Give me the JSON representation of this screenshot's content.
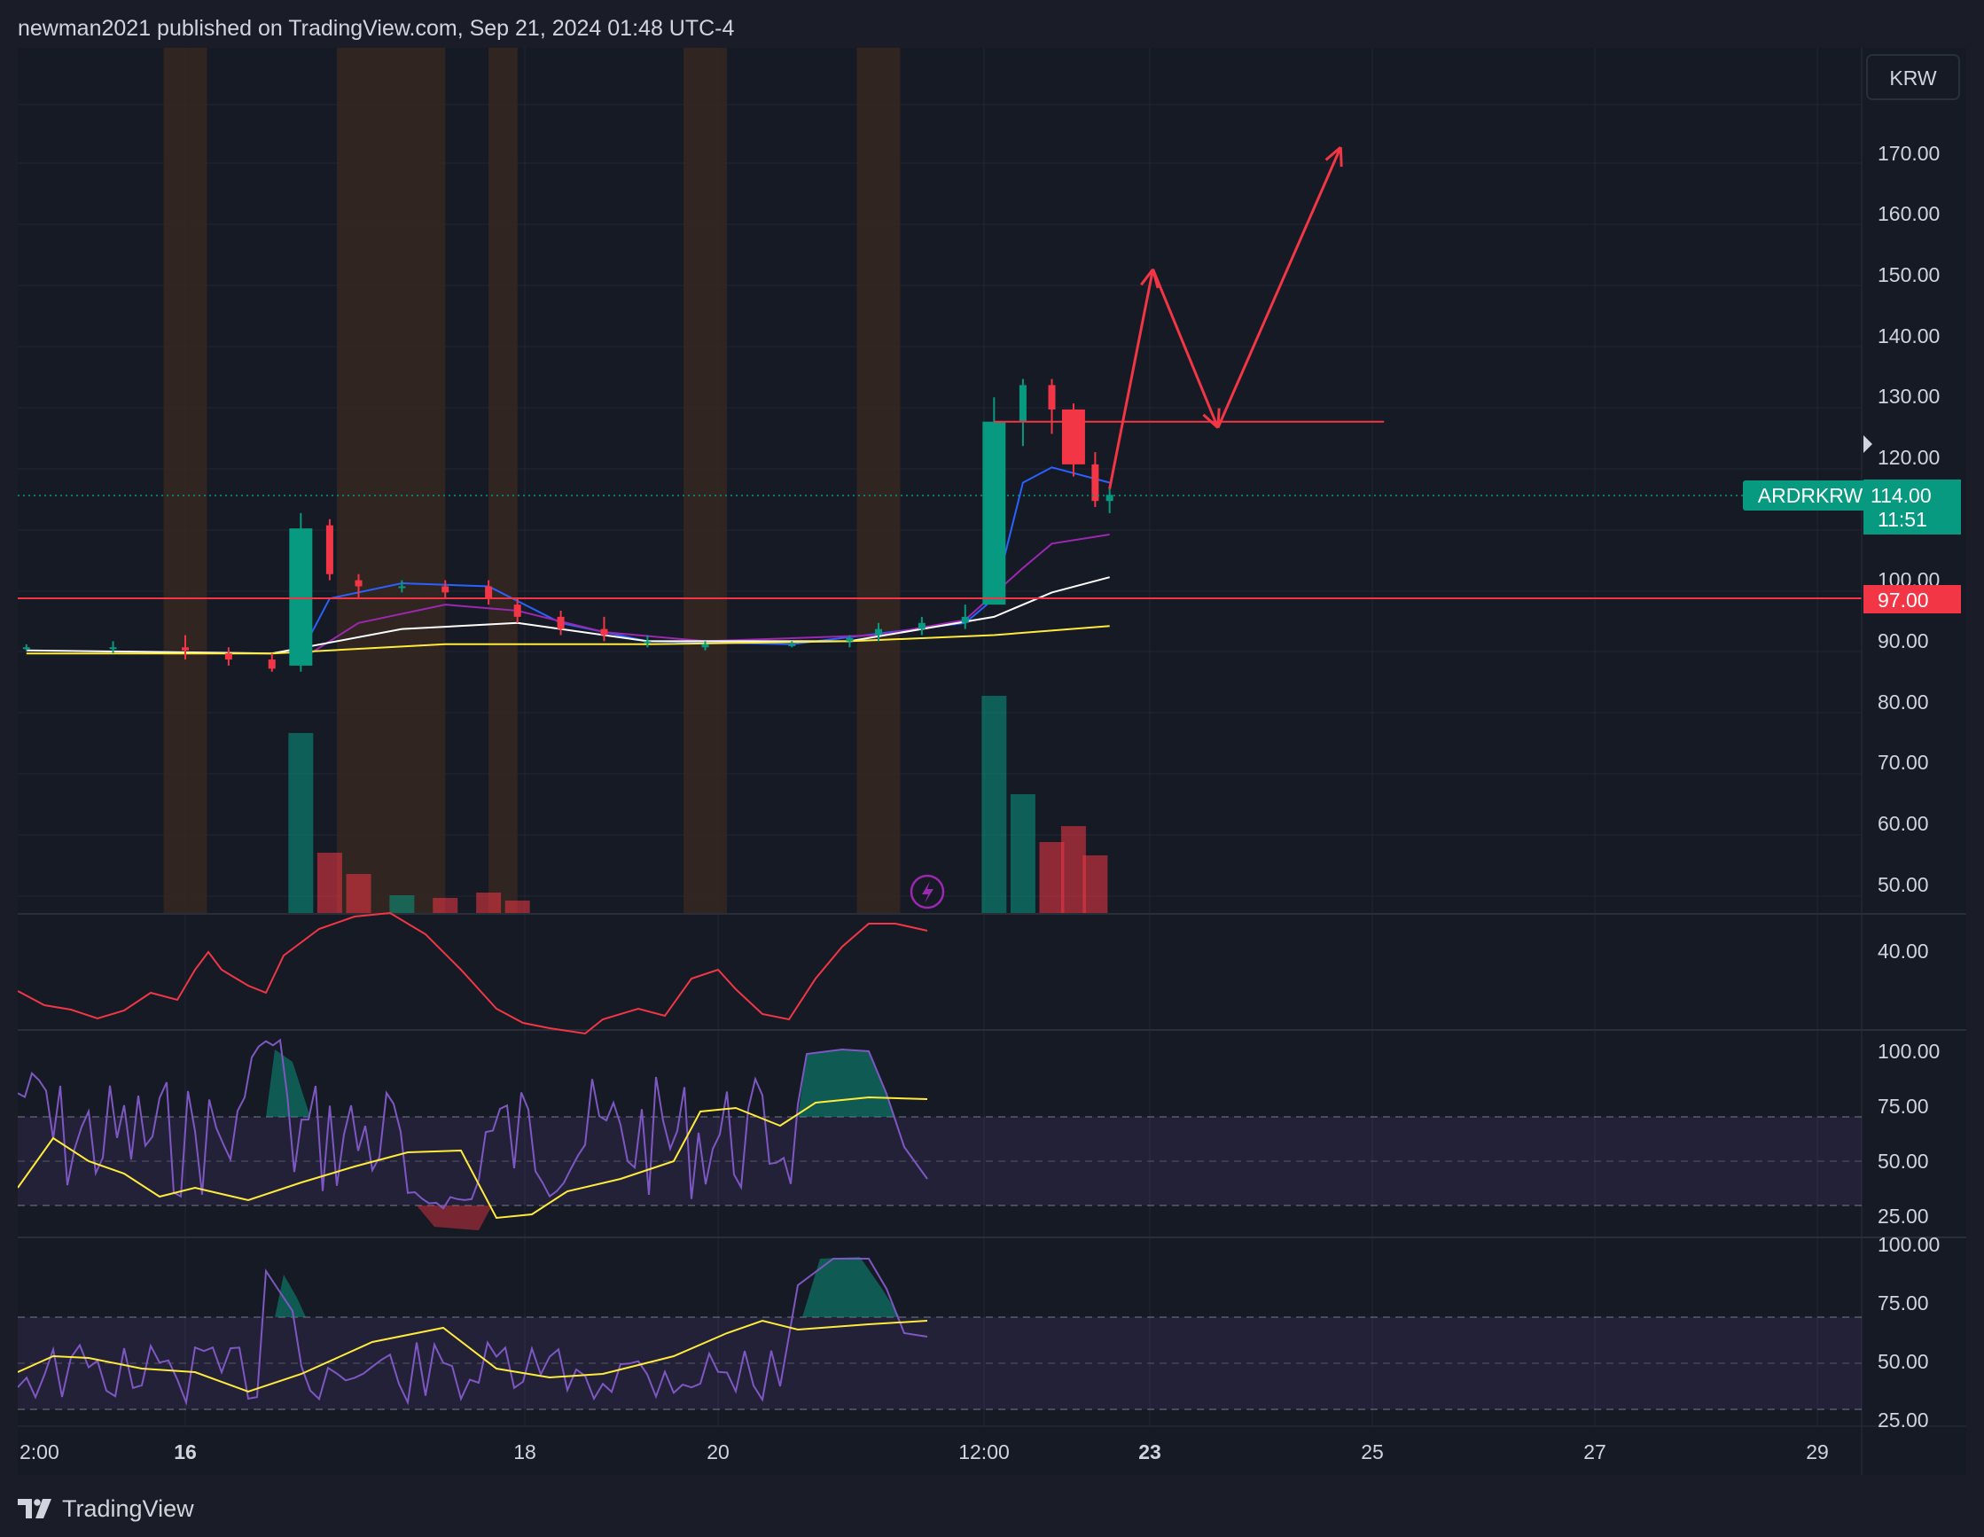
{
  "header": {
    "text": "newman2021 published on TradingView.com, Sep 21, 2024 01:48 UTC-4"
  },
  "currency_button": "KRW",
  "footer": {
    "logo_text": "TradingView"
  },
  "colors": {
    "up": "#089981",
    "down": "#f23645",
    "ma_fast": "#2962ff",
    "ma_mid": "#9c27b0",
    "ma_slow": "#ffffff",
    "ma_long": "#ffeb3b",
    "rsi": "#7e57c2",
    "rsi_ma": "#ffeb3b",
    "session": "#3a2a1f",
    "drawing": "#f23645"
  },
  "price_panel": {
    "symbol_label": "ARDRKRW",
    "last_price": "114.00",
    "countdown": "11:51",
    "level_label": "97.00",
    "y_ticks": [
      "170.00",
      "160.00",
      "150.00",
      "140.00",
      "130.00",
      "120.00",
      "100.00",
      "90.00",
      "80.00",
      "70.00",
      "60.00",
      "50.00"
    ]
  },
  "panel2": {
    "y_ticks": [
      "40.00"
    ]
  },
  "panel3": {
    "y_ticks": [
      "100.00",
      "75.00",
      "50.00",
      "25.00"
    ]
  },
  "panel4": {
    "y_ticks": [
      "100.00",
      "75.00",
      "50.00",
      "25.00"
    ]
  },
  "x_axis": {
    "labels": [
      "2:00",
      "16",
      "18",
      "20",
      "12:00",
      "23",
      "25",
      "27",
      "29"
    ]
  },
  "chart_data": {
    "type": "candlestick",
    "symbol": "ARDRKRW",
    "currency": "KRW",
    "last_price": 114.0,
    "horizontal_level": 97.0,
    "price_range": [
      45,
      180
    ],
    "candles": [
      {
        "t": "15 02:00",
        "o": 89,
        "h": 89.5,
        "l": 88.5,
        "c": 89
      },
      {
        "t": "15 14:00",
        "o": 89,
        "h": 90,
        "l": 88,
        "c": 89
      },
      {
        "t": "16 00:00",
        "o": 89,
        "h": 91,
        "l": 87,
        "c": 88.5
      },
      {
        "t": "16 06:00",
        "o": 88,
        "h": 89,
        "l": 86,
        "c": 87
      },
      {
        "t": "16 12:00",
        "o": 87,
        "h": 88,
        "l": 85,
        "c": 85.5
      },
      {
        "t": "16 16:00",
        "o": 86,
        "h": 111,
        "l": 85,
        "c": 108.5
      },
      {
        "t": "16 20:00",
        "o": 109,
        "h": 110,
        "l": 100,
        "c": 101
      },
      {
        "t": "17 00:00",
        "o": 100,
        "h": 101,
        "l": 97,
        "c": 99
      },
      {
        "t": "17 06:00",
        "o": 99,
        "h": 100,
        "l": 98,
        "c": 99
      },
      {
        "t": "17 12:00",
        "o": 99,
        "h": 100,
        "l": 97,
        "c": 98
      },
      {
        "t": "17 18:00",
        "o": 99,
        "h": 100,
        "l": 96,
        "c": 97
      },
      {
        "t": "17 22:00",
        "o": 96,
        "h": 97,
        "l": 93,
        "c": 94
      },
      {
        "t": "18 04:00",
        "o": 94,
        "h": 95,
        "l": 91,
        "c": 92
      },
      {
        "t": "18 10:00",
        "o": 92,
        "h": 94,
        "l": 90,
        "c": 91
      },
      {
        "t": "18 16:00",
        "o": 90,
        "h": 91,
        "l": 89,
        "c": 90
      },
      {
        "t": "19 00:00",
        "o": 89,
        "h": 90,
        "l": 88.5,
        "c": 89.5
      },
      {
        "t": "19 12:00",
        "o": 89.5,
        "h": 90,
        "l": 89,
        "c": 89.5
      },
      {
        "t": "19 20:00",
        "o": 90,
        "h": 91,
        "l": 89,
        "c": 90.5
      },
      {
        "t": "20 00:00",
        "o": 91,
        "h": 93,
        "l": 90,
        "c": 92
      },
      {
        "t": "20 06:00",
        "o": 92,
        "h": 94,
        "l": 91,
        "c": 93
      },
      {
        "t": "20 12:00",
        "o": 93,
        "h": 96,
        "l": 92,
        "c": 94
      },
      {
        "t": "20 16:00",
        "o": 96,
        "h": 130,
        "l": 96,
        "c": 126
      },
      {
        "t": "20 20:00",
        "o": 126,
        "h": 133,
        "l": 122,
        "c": 132
      },
      {
        "t": "21 00:00",
        "o": 132,
        "h": 133,
        "l": 124,
        "c": 128
      },
      {
        "t": "21 03:00",
        "o": 128,
        "h": 129,
        "l": 117,
        "c": 119
      },
      {
        "t": "21 06:00",
        "o": 119,
        "h": 121,
        "l": 112,
        "c": 113
      },
      {
        "t": "21 08:00",
        "o": 113,
        "h": 115,
        "l": 111,
        "c": 114
      }
    ],
    "volume": [
      {
        "t": "16 16:00",
        "v": 68,
        "dir": "up"
      },
      {
        "t": "16 20:00",
        "v": 23,
        "dir": "down"
      },
      {
        "t": "17 00:00",
        "v": 15,
        "dir": "down"
      },
      {
        "t": "17 06:00",
        "v": 7,
        "dir": "up"
      },
      {
        "t": "17 12:00",
        "v": 6,
        "dir": "down"
      },
      {
        "t": "17 18:00",
        "v": 8,
        "dir": "down"
      },
      {
        "t": "17 22:00",
        "v": 5,
        "dir": "down"
      },
      {
        "t": "20 16:00",
        "v": 82,
        "dir": "up"
      },
      {
        "t": "20 20:00",
        "v": 45,
        "dir": "up"
      },
      {
        "t": "21 00:00",
        "v": 27,
        "dir": "down"
      },
      {
        "t": "21 03:00",
        "v": 33,
        "dir": "down"
      },
      {
        "t": "21 06:00",
        "v": 22,
        "dir": "down"
      }
    ],
    "moving_averages": [
      {
        "color": "#2962ff",
        "points": [
          [
            "16 16:00",
            88
          ],
          [
            "16 20:00",
            97
          ],
          [
            "17 06:00",
            99.5
          ],
          [
            "17 18:00",
            99
          ],
          [
            "18 04:00",
            93
          ],
          [
            "18 16:00",
            90
          ],
          [
            "19 12:00",
            89.5
          ],
          [
            "20 12:00",
            93
          ],
          [
            "20 16:00",
            97
          ],
          [
            "20 20:00",
            116
          ],
          [
            "21 00:00",
            118.5
          ],
          [
            "21 08:00",
            116
          ]
        ]
      },
      {
        "color": "#9c27b0",
        "points": [
          [
            "16 16:00",
            87
          ],
          [
            "17 00:00",
            93
          ],
          [
            "17 12:00",
            96
          ],
          [
            "17 22:00",
            95
          ],
          [
            "18 10:00",
            91.5
          ],
          [
            "19 00:00",
            90
          ],
          [
            "20 00:00",
            91
          ],
          [
            "20 12:00",
            93.5
          ],
          [
            "20 20:00",
            102
          ],
          [
            "21 00:00",
            106
          ],
          [
            "21 08:00",
            107.5
          ]
        ]
      },
      {
        "color": "#ffffff",
        "points": [
          [
            "15 02:00",
            88.5
          ],
          [
            "16 12:00",
            88
          ],
          [
            "17 06:00",
            92
          ],
          [
            "17 22:00",
            93
          ],
          [
            "18 16:00",
            90
          ],
          [
            "19 20:00",
            90
          ],
          [
            "20 16:00",
            94
          ],
          [
            "21 00:00",
            98
          ],
          [
            "21 08:00",
            100.5
          ]
        ]
      },
      {
        "color": "#ffeb3b",
        "points": [
          [
            "15 02:00",
            88
          ],
          [
            "16 12:00",
            88
          ],
          [
            "17 12:00",
            89.5
          ],
          [
            "18 16:00",
            89.5
          ],
          [
            "19 20:00",
            90
          ],
          [
            "20 16:00",
            91
          ],
          [
            "21 08:00",
            92.5
          ]
        ]
      }
    ],
    "projection_path": [
      [
        "21 08:00",
        115
      ],
      [
        "21 14:00",
        151
      ],
      [
        "21 23:00",
        125
      ],
      [
        "22 16:00",
        171
      ]
    ],
    "projection_level": {
      "value": 126,
      "from": "20 16:00",
      "to": "22 22:00"
    },
    "sessions": [
      [
        "15 21:00",
        "16 03:00"
      ],
      [
        "16 21:00",
        "17 12:00"
      ],
      [
        "17 18:00",
        "17 22:00"
      ],
      [
        "18 21:00",
        "19 03:00"
      ],
      [
        "19 21:00",
        "20 03:00"
      ]
    ],
    "rsi_levels": [
      70,
      50,
      30
    ]
  }
}
